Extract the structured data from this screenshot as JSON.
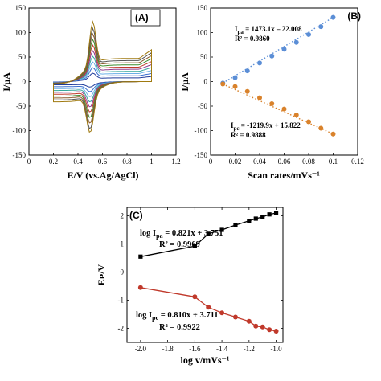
{
  "chart_data": [
    {
      "id": "A",
      "type": "line",
      "panel_label": "(A)",
      "xlabel": "E/V (vs.Ag/AgCl)",
      "ylabel": "I/µA",
      "xlim": [
        0,
        1.2
      ],
      "ylim": [
        -150,
        150
      ],
      "xticks": [
        "0",
        "0.2",
        "0.4",
        "0.6",
        "0.8",
        "1",
        "1.2"
      ],
      "yticks": [
        "-150",
        "-100",
        "-50",
        "0",
        "50",
        "100",
        "150"
      ],
      "curves": {
        "count": 10,
        "x_range": [
          0.2,
          1.0
        ],
        "peak_anodic": {
          "x": 0.52,
          "y": [
            18,
            30,
            42,
            54,
            66,
            78,
            90,
            102,
            114,
            128
          ]
        },
        "peak_cathodic": {
          "x": 0.5,
          "y": [
            -12,
            -22,
            -33,
            -44,
            -55,
            -66,
            -78,
            -90,
            -102,
            -110
          ]
        },
        "colors": [
          "#1f3b9b",
          "#3a6fd0",
          "#6ab0e8",
          "#35a79a",
          "#8e3b8e",
          "#c0392b",
          "#3c8d2f",
          "#8a5a2b",
          "#555555",
          "#a07a10"
        ]
      }
    },
    {
      "id": "B",
      "type": "scatter",
      "panel_label": "(B)",
      "xlabel": "Scan rates/mVs⁻¹",
      "ylabel": "I/µA",
      "xlim": [
        0,
        0.12
      ],
      "ylim": [
        -150,
        150
      ],
      "xticks": [
        "0",
        "0.02",
        "0.04",
        "0.06",
        "0.08",
        "0.1",
        "0.12"
      ],
      "yticks": [
        "-150",
        "-100",
        "-50",
        "0",
        "50",
        "100",
        "150"
      ],
      "series": [
        {
          "name": "Ipa",
          "color": "#5b8ed6",
          "x": [
            0.01,
            0.02,
            0.03,
            0.04,
            0.05,
            0.06,
            0.07,
            0.08,
            0.09,
            0.1
          ],
          "y": [
            -3,
            8,
            22,
            38,
            52,
            66,
            80,
            96,
            112,
            131
          ]
        },
        {
          "name": "Ipc",
          "color": "#d9822b",
          "x": [
            0.01,
            0.02,
            0.03,
            0.04,
            0.05,
            0.06,
            0.07,
            0.08,
            0.09,
            0.1
          ],
          "y": [
            -5,
            -10,
            -20,
            -33,
            -45,
            -56,
            -68,
            -82,
            -95,
            -107
          ]
        }
      ],
      "annotations": {
        "eq1_a": "I",
        "eq1_sub": "pa",
        "eq1_b": " = 1473.1x – 22.008",
        "r1": "R² = 0.9860",
        "eq2_a": "I",
        "eq2_sub": "pc",
        "eq2_b": " = -1219.9x + 15.822",
        "r2": "R² = 0.9888"
      }
    },
    {
      "id": "C",
      "type": "line",
      "panel_label": "(C)",
      "xlabel": "log v/mVs⁻¹",
      "ylabel": "Eᴘ/V",
      "xlim": [
        -2.1,
        -0.95
      ],
      "ylim": [
        -2.5,
        2.3
      ],
      "xticks": [
        "-2.0",
        "-1.8",
        "-1.6",
        "-1.4",
        "-1.2",
        "-1.0"
      ],
      "yticks": [
        "-2",
        "-1",
        "0",
        "1",
        "2"
      ],
      "series": [
        {
          "name": "log Ipa",
          "color": "#000000",
          "x": [
            -2.0,
            -1.6,
            -1.5,
            -1.4,
            -1.3,
            -1.2,
            -1.15,
            -1.1,
            -1.05,
            -1.0
          ],
          "y": [
            0.55,
            0.92,
            1.36,
            1.5,
            1.67,
            1.82,
            1.9,
            1.96,
            2.05,
            2.1
          ]
        },
        {
          "name": "log Ipc",
          "color": "#c0392b",
          "x": [
            -2.0,
            -1.6,
            -1.5,
            -1.4,
            -1.3,
            -1.2,
            -1.15,
            -1.1,
            -1.05,
            -1.0
          ],
          "y": [
            -0.55,
            -0.88,
            -1.25,
            -1.45,
            -1.6,
            -1.75,
            -1.92,
            -1.95,
            -2.05,
            -2.1
          ]
        }
      ],
      "annotations": {
        "eq1_a": "log I",
        "eq1_sub": "pa",
        "eq1_b": " = 0.821x + 3.751",
        "r1": "R² = 0.9969",
        "eq2_a": "log I",
        "eq2_sub": "pc",
        "eq2_b": " = 0.810x + 3.711",
        "r2": "R² = 0.9922"
      }
    }
  ]
}
